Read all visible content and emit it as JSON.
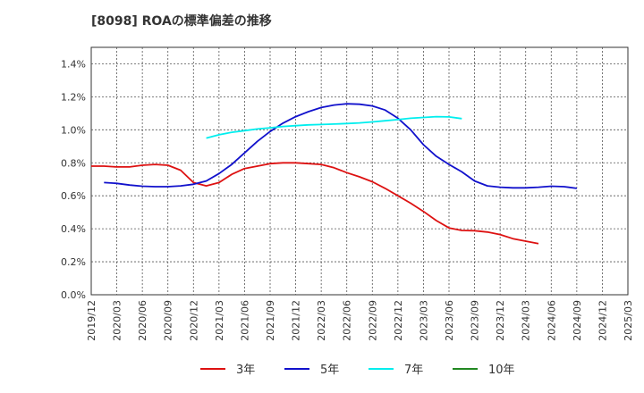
{
  "chart_data": {
    "type": "line",
    "title": "[8098]  ROAの標準偏差の推移",
    "xlabel": "",
    "ylabel": "",
    "x_ticks": [
      "2019/12",
      "2020/03",
      "2020/06",
      "2020/09",
      "2020/12",
      "2021/03",
      "2021/06",
      "2021/09",
      "2021/12",
      "2022/03",
      "2022/06",
      "2022/09",
      "2022/12",
      "2023/03",
      "2023/06",
      "2023/09",
      "2023/12",
      "2024/03",
      "2024/06",
      "2024/09",
      "2024/12",
      "2025/03"
    ],
    "y_ticks": [
      "0.0%",
      "0.2%",
      "0.4%",
      "0.6%",
      "0.8%",
      "1.0%",
      "1.2%",
      "1.4%"
    ],
    "ylim": [
      0,
      1.5
    ],
    "grid": true,
    "legend_position": "bottom",
    "series": [
      {
        "name": "3年",
        "color": "#dd1111",
        "start_index": 0,
        "values": [
          0.78,
          0.78,
          0.775,
          0.775,
          0.785,
          0.79,
          0.785,
          0.755,
          0.68,
          0.66,
          0.68,
          0.73,
          0.765,
          0.78,
          0.795,
          0.8,
          0.8,
          0.795,
          0.79,
          0.77,
          0.74,
          0.715,
          0.685,
          0.645,
          0.6,
          0.555,
          0.505,
          0.45,
          0.405,
          0.39,
          0.388,
          0.38,
          0.365,
          0.34,
          0.325,
          0.31
        ]
      },
      {
        "name": "5年",
        "color": "#1111cc",
        "start_index": 1,
        "values": [
          0.68,
          0.675,
          0.665,
          0.658,
          0.655,
          0.655,
          0.66,
          0.67,
          0.69,
          0.735,
          0.79,
          0.86,
          0.93,
          0.99,
          1.04,
          1.08,
          1.11,
          1.135,
          1.15,
          1.158,
          1.155,
          1.145,
          1.12,
          1.07,
          1.0,
          0.91,
          0.84,
          0.79,
          0.745,
          0.69,
          0.66,
          0.652,
          0.648,
          0.648,
          0.652,
          0.658,
          0.655,
          0.645
        ]
      },
      {
        "name": "7年",
        "color": "#00eeee",
        "start_index": 9,
        "values": [
          0.95,
          0.97,
          0.985,
          0.995,
          1.005,
          1.012,
          1.02,
          1.025,
          1.03,
          1.032,
          1.035,
          1.038,
          1.042,
          1.048,
          1.055,
          1.062,
          1.07,
          1.075,
          1.08,
          1.078,
          1.068
        ]
      },
      {
        "name": "10年",
        "color": "#228822",
        "start_index": 0,
        "values": []
      }
    ]
  }
}
